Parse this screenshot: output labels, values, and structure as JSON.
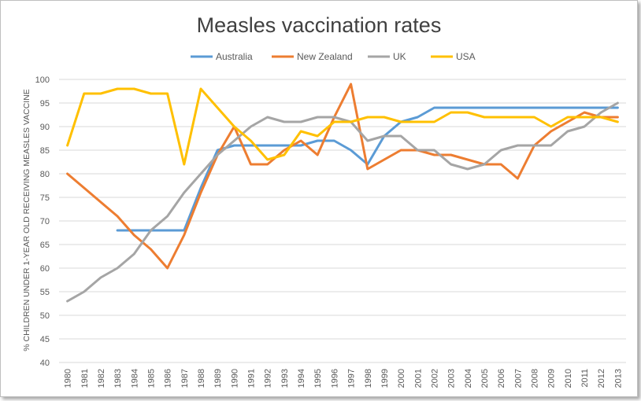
{
  "chart_data": {
    "type": "line",
    "title": "Measles vaccination rates",
    "xlabel": "",
    "ylabel": "% CHILDREN UNDER 1-YEAR OLD RECEIVING MEASLES VACCINE",
    "ylim": [
      40,
      100
    ],
    "yticks": [
      40,
      45,
      50,
      55,
      60,
      65,
      70,
      75,
      80,
      85,
      90,
      95,
      100
    ],
    "grid": true,
    "legend_position": "top",
    "categories": [
      "1980",
      "1981",
      "1982",
      "1983",
      "1984",
      "1985",
      "1986",
      "1987",
      "1988",
      "1989",
      "1990",
      "1991",
      "1992",
      "1993",
      "1994",
      "1995",
      "1996",
      "1997",
      "1998",
      "1999",
      "2000",
      "2001",
      "2002",
      "2003",
      "2004",
      "2005",
      "2006",
      "2007",
      "2008",
      "2009",
      "2010",
      "2011",
      "2012",
      "2013"
    ],
    "series": [
      {
        "name": "Australia",
        "color": "#5b9bd5",
        "values": [
          null,
          null,
          null,
          68,
          68,
          68,
          68,
          68,
          77,
          85,
          86,
          86,
          86,
          86,
          86,
          87,
          87,
          85,
          82,
          88,
          91,
          92,
          94,
          94,
          94,
          94,
          94,
          94,
          94,
          94,
          94,
          94,
          94,
          94
        ]
      },
      {
        "name": "New Zealand",
        "color": "#ed7d31",
        "values": [
          80,
          77,
          74,
          71,
          67,
          64,
          60,
          67,
          76,
          84,
          90,
          82,
          82,
          85,
          87,
          84,
          92,
          99,
          81,
          83,
          85,
          85,
          84,
          84,
          83,
          82,
          82,
          79,
          86,
          89,
          91,
          93,
          92,
          92
        ]
      },
      {
        "name": "UK",
        "color": "#a5a5a5",
        "values": [
          53,
          55,
          58,
          60,
          63,
          68,
          71,
          76,
          80,
          84,
          87,
          90,
          92,
          91,
          91,
          92,
          92,
          91,
          87,
          88,
          88,
          85,
          85,
          82,
          81,
          82,
          85,
          86,
          86,
          86,
          89,
          90,
          93,
          95
        ]
      },
      {
        "name": "USA",
        "color": "#ffc000",
        "values": [
          86,
          97,
          97,
          98,
          98,
          97,
          97,
          82,
          98,
          94,
          90,
          87,
          83,
          84,
          89,
          88,
          91,
          91,
          92,
          92,
          91,
          91,
          91,
          93,
          93,
          92,
          92,
          92,
          92,
          90,
          92,
          92,
          92,
          91
        ]
      }
    ]
  }
}
